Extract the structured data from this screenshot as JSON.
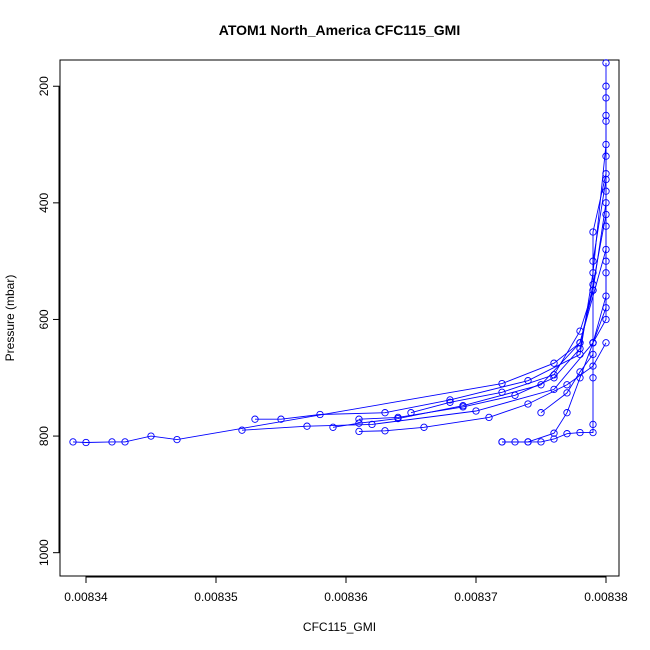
{
  "chart_data": {
    "type": "line",
    "title": "ATOM1 North_America CFC115_GMI",
    "xlabel": "CFC115_GMI",
    "ylabel": "Pressure (mbar)",
    "xlim": [
      0.008338,
      0.008381
    ],
    "ylim": [
      1040,
      155
    ],
    "y_reversed": true,
    "x_ticks": [
      "0.00834",
      "0.00835",
      "0.00836",
      "0.00837",
      "0.00838"
    ],
    "x_tick_values": [
      0.00834,
      0.00835,
      0.00836,
      0.00837,
      0.00838
    ],
    "y_ticks": [
      "200",
      "400",
      "600",
      "800",
      "1000"
    ],
    "y_tick_values": [
      200,
      400,
      600,
      800,
      1000
    ],
    "marker": "open-circle",
    "line_color": "#0000ff",
    "grid": false,
    "series": [
      {
        "values": [
          [
            0.008339,
            810
          ],
          [
            0.00834,
            811
          ],
          [
            0.008342,
            810
          ],
          [
            0.008343,
            810
          ],
          [
            0.008345,
            800
          ],
          [
            0.008347,
            806
          ],
          [
            0.008372,
            710
          ],
          [
            0.008376,
            675
          ],
          [
            0.008378,
            640
          ],
          [
            0.008379,
            550
          ],
          [
            0.008379,
            450
          ],
          [
            0.00838,
            350
          ],
          [
            0.00838,
            250
          ],
          [
            0.00838,
            160
          ]
        ]
      },
      {
        "values": [
          [
            0.008352,
            790
          ],
          [
            0.008357,
            783
          ],
          [
            0.008362,
            780
          ],
          [
            0.00837,
            757
          ],
          [
            0.008376,
            720
          ],
          [
            0.008379,
            640
          ],
          [
            0.008379,
            500
          ],
          [
            0.00838,
            360
          ],
          [
            0.00838,
            200
          ]
        ]
      },
      {
        "values": [
          [
            0.008353,
            771
          ],
          [
            0.008355,
            771
          ],
          [
            0.008358,
            763
          ],
          [
            0.008363,
            760
          ],
          [
            0.008368,
            738
          ],
          [
            0.008374,
            705
          ],
          [
            0.008378,
            660
          ],
          [
            0.008379,
            520
          ],
          [
            0.00838,
            300
          ]
        ]
      },
      {
        "values": [
          [
            0.008359,
            785
          ],
          [
            0.008361,
            778
          ],
          [
            0.008364,
            770
          ],
          [
            0.008369,
            748
          ],
          [
            0.008375,
            712
          ],
          [
            0.008378,
            640
          ],
          [
            0.00838,
            480
          ],
          [
            0.00838,
            260
          ]
        ]
      },
      {
        "values": [
          [
            0.008361,
            771
          ],
          [
            0.008364,
            768
          ],
          [
            0.008369,
            750
          ],
          [
            0.008373,
            730
          ],
          [
            0.008376,
            700
          ],
          [
            0.008378,
            650
          ],
          [
            0.008379,
            540
          ],
          [
            0.00838,
            420
          ]
        ]
      },
      {
        "values": [
          [
            0.008365,
            760
          ],
          [
            0.008368,
            742
          ],
          [
            0.008372,
            725
          ],
          [
            0.008376,
            695
          ],
          [
            0.008378,
            620
          ],
          [
            0.008379,
            550
          ],
          [
            0.00838,
            400
          ]
        ]
      },
      {
        "values": [
          [
            0.008361,
            792
          ],
          [
            0.008363,
            791
          ],
          [
            0.008366,
            785
          ],
          [
            0.008371,
            768
          ],
          [
            0.008374,
            745
          ],
          [
            0.008377,
            712
          ],
          [
            0.008379,
            680
          ],
          [
            0.00838,
            640
          ]
        ]
      },
      {
        "values": [
          [
            0.008372,
            810
          ],
          [
            0.008373,
            810
          ],
          [
            0.008374,
            810
          ],
          [
            0.008375,
            810
          ],
          [
            0.008376,
            805
          ],
          [
            0.008377,
            796
          ],
          [
            0.008378,
            794
          ],
          [
            0.008379,
            794
          ],
          [
            0.008379,
            780
          ],
          [
            0.008379,
            700
          ],
          [
            0.008379,
            640
          ],
          [
            0.00838,
            560
          ],
          [
            0.00838,
            440
          ],
          [
            0.00838,
            320
          ],
          [
            0.00838,
            220
          ]
        ]
      },
      {
        "values": [
          [
            0.008372,
            810
          ],
          [
            0.008374,
            810
          ],
          [
            0.008376,
            795
          ],
          [
            0.008377,
            760
          ],
          [
            0.008378,
            700
          ],
          [
            0.008379,
            640
          ],
          [
            0.00838,
            600
          ],
          [
            0.00838,
            520
          ]
        ]
      },
      {
        "values": [
          [
            0.008375,
            760
          ],
          [
            0.008377,
            726
          ],
          [
            0.008378,
            690
          ],
          [
            0.008379,
            660
          ],
          [
            0.008379,
            640
          ],
          [
            0.00838,
            580
          ],
          [
            0.00838,
            500
          ],
          [
            0.00838,
            380
          ]
        ]
      }
    ]
  }
}
